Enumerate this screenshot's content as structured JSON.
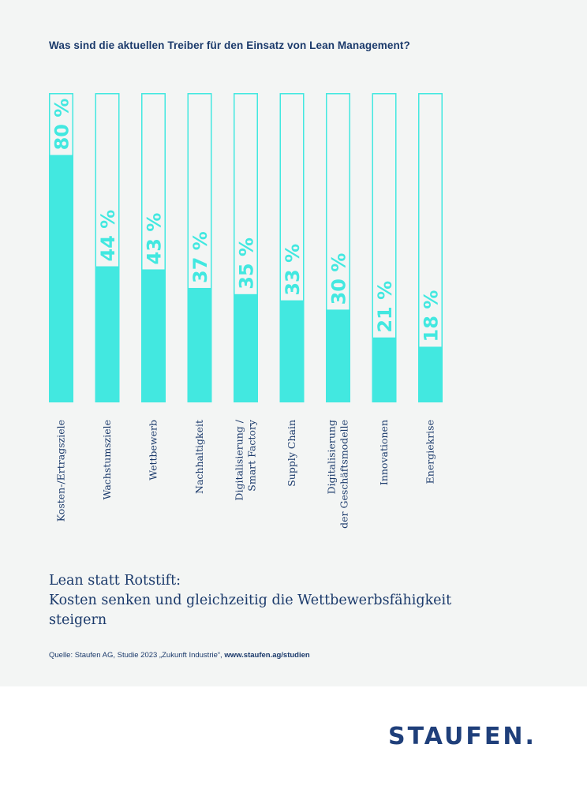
{
  "question": "Was sind die aktuellen Treiber für den Einsatz von Lean Management?",
  "headline": {
    "line1": "Lean statt Rotstift:",
    "line2": "Kosten senken und gleichzeitig die Wettbewerbsfähigkeit",
    "line3": "steigern"
  },
  "source": {
    "text": "Quelle: Staufen AG, Studie 2023 „Zukunft Industrie“, ",
    "link": "www.staufen.ag/studien"
  },
  "logo": "STAUFEN.",
  "colors": {
    "bar": "#42e8e0",
    "background": "#f3f5f4",
    "text": "#1b3a6b"
  },
  "chart_data": {
    "type": "bar",
    "orientation": "vertical",
    "title": "Was sind die aktuellen Treiber für den Einsatz von Lean Management?",
    "unit": "%",
    "ylim": [
      0,
      100
    ],
    "categories": [
      "Kosten-/Ertragsziele",
      "Wachstumsziele",
      "Wettbewerb",
      "Nachhaltigkeit",
      "Digitalisierung / Smart Factory",
      "Supply Chain",
      "Digitalisierung der Geschäftsmodelle",
      "Innovationen",
      "Energiekrise"
    ],
    "category_lines": [
      [
        "Kosten-/Ertragsziele"
      ],
      [
        "Wachstumsziele"
      ],
      [
        "Wettbewerb"
      ],
      [
        "Nachhaltigkeit"
      ],
      [
        "Digitalisierung /",
        "Smart Factory"
      ],
      [
        "Supply Chain"
      ],
      [
        "Digitalisierung",
        "der Geschäftsmodelle"
      ],
      [
        "Innovationen"
      ],
      [
        "Energiekrise"
      ]
    ],
    "values": [
      80,
      44,
      43,
      37,
      35,
      33,
      30,
      21,
      18
    ],
    "value_labels": [
      "80 %",
      "44 %",
      "43 %",
      "37 %",
      "35 %",
      "33 %",
      "30 %",
      "21 %",
      "18 %"
    ],
    "grid": false,
    "legend": "none"
  }
}
